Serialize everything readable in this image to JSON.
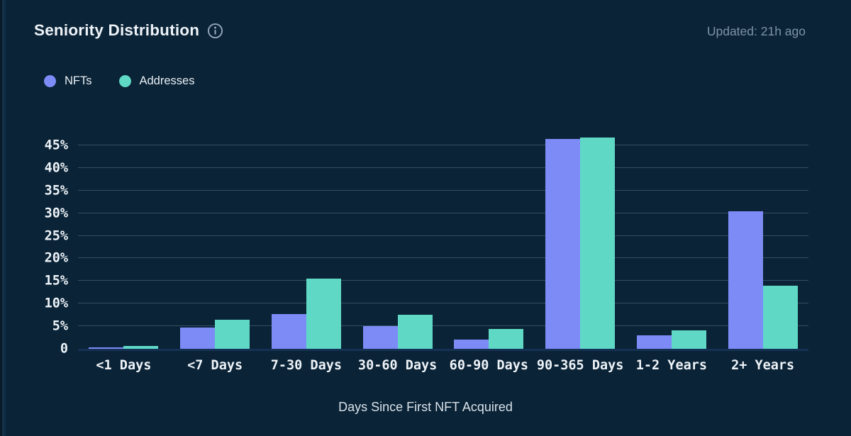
{
  "header": {
    "title": "Seniority Distribution",
    "updated": "Updated: 21h ago",
    "info_icon": "info-circle-icon"
  },
  "legend": {
    "items": [
      {
        "label": "NFTs",
        "color": "#7d8bf7"
      },
      {
        "label": "Addresses",
        "color": "#5fd9c6"
      }
    ]
  },
  "chart_data": {
    "type": "bar",
    "title": "Seniority Distribution",
    "xlabel": "Days Since First NFT Acquired",
    "ylabel": "",
    "categories": [
      "<1 Days",
      "<7 Days",
      "7-30 Days",
      "30-60 Days",
      "60-90 Days",
      "90-365 Days",
      "1-2 Years",
      "2+ Years"
    ],
    "series": [
      {
        "name": "NFTs",
        "color": "#7d8bf7",
        "values": [
          0.3,
          4.7,
          7.7,
          5.0,
          2.0,
          46.4,
          3.0,
          30.4
        ]
      },
      {
        "name": "Addresses",
        "color": "#5fd9c6",
        "values": [
          0.6,
          6.5,
          15.5,
          7.6,
          4.4,
          46.7,
          4.1,
          14.0
        ]
      }
    ],
    "y_ticks": [
      {
        "value": 0,
        "label": "0"
      },
      {
        "value": 5,
        "label": "5%"
      },
      {
        "value": 10,
        "label": "10%"
      },
      {
        "value": 15,
        "label": "15%"
      },
      {
        "value": 20,
        "label": "20%"
      },
      {
        "value": 25,
        "label": "25%"
      },
      {
        "value": 30,
        "label": "30%"
      },
      {
        "value": 35,
        "label": "35%"
      },
      {
        "value": 40,
        "label": "40%"
      },
      {
        "value": 45,
        "label": "45%"
      }
    ],
    "ylim": [
      0,
      47.35
    ],
    "grid": "horizontal",
    "legend_position": "top-left"
  },
  "colors": {
    "background": "#0a2336",
    "grid": "rgba(148,180,210,0.30)",
    "axis_line": "#143156",
    "title": "#eef3f8",
    "updated_text": "#7e94a8",
    "tick_label": "#eef3f8",
    "caption": "#d9e2ea",
    "info_icon": "#93a6b8"
  }
}
